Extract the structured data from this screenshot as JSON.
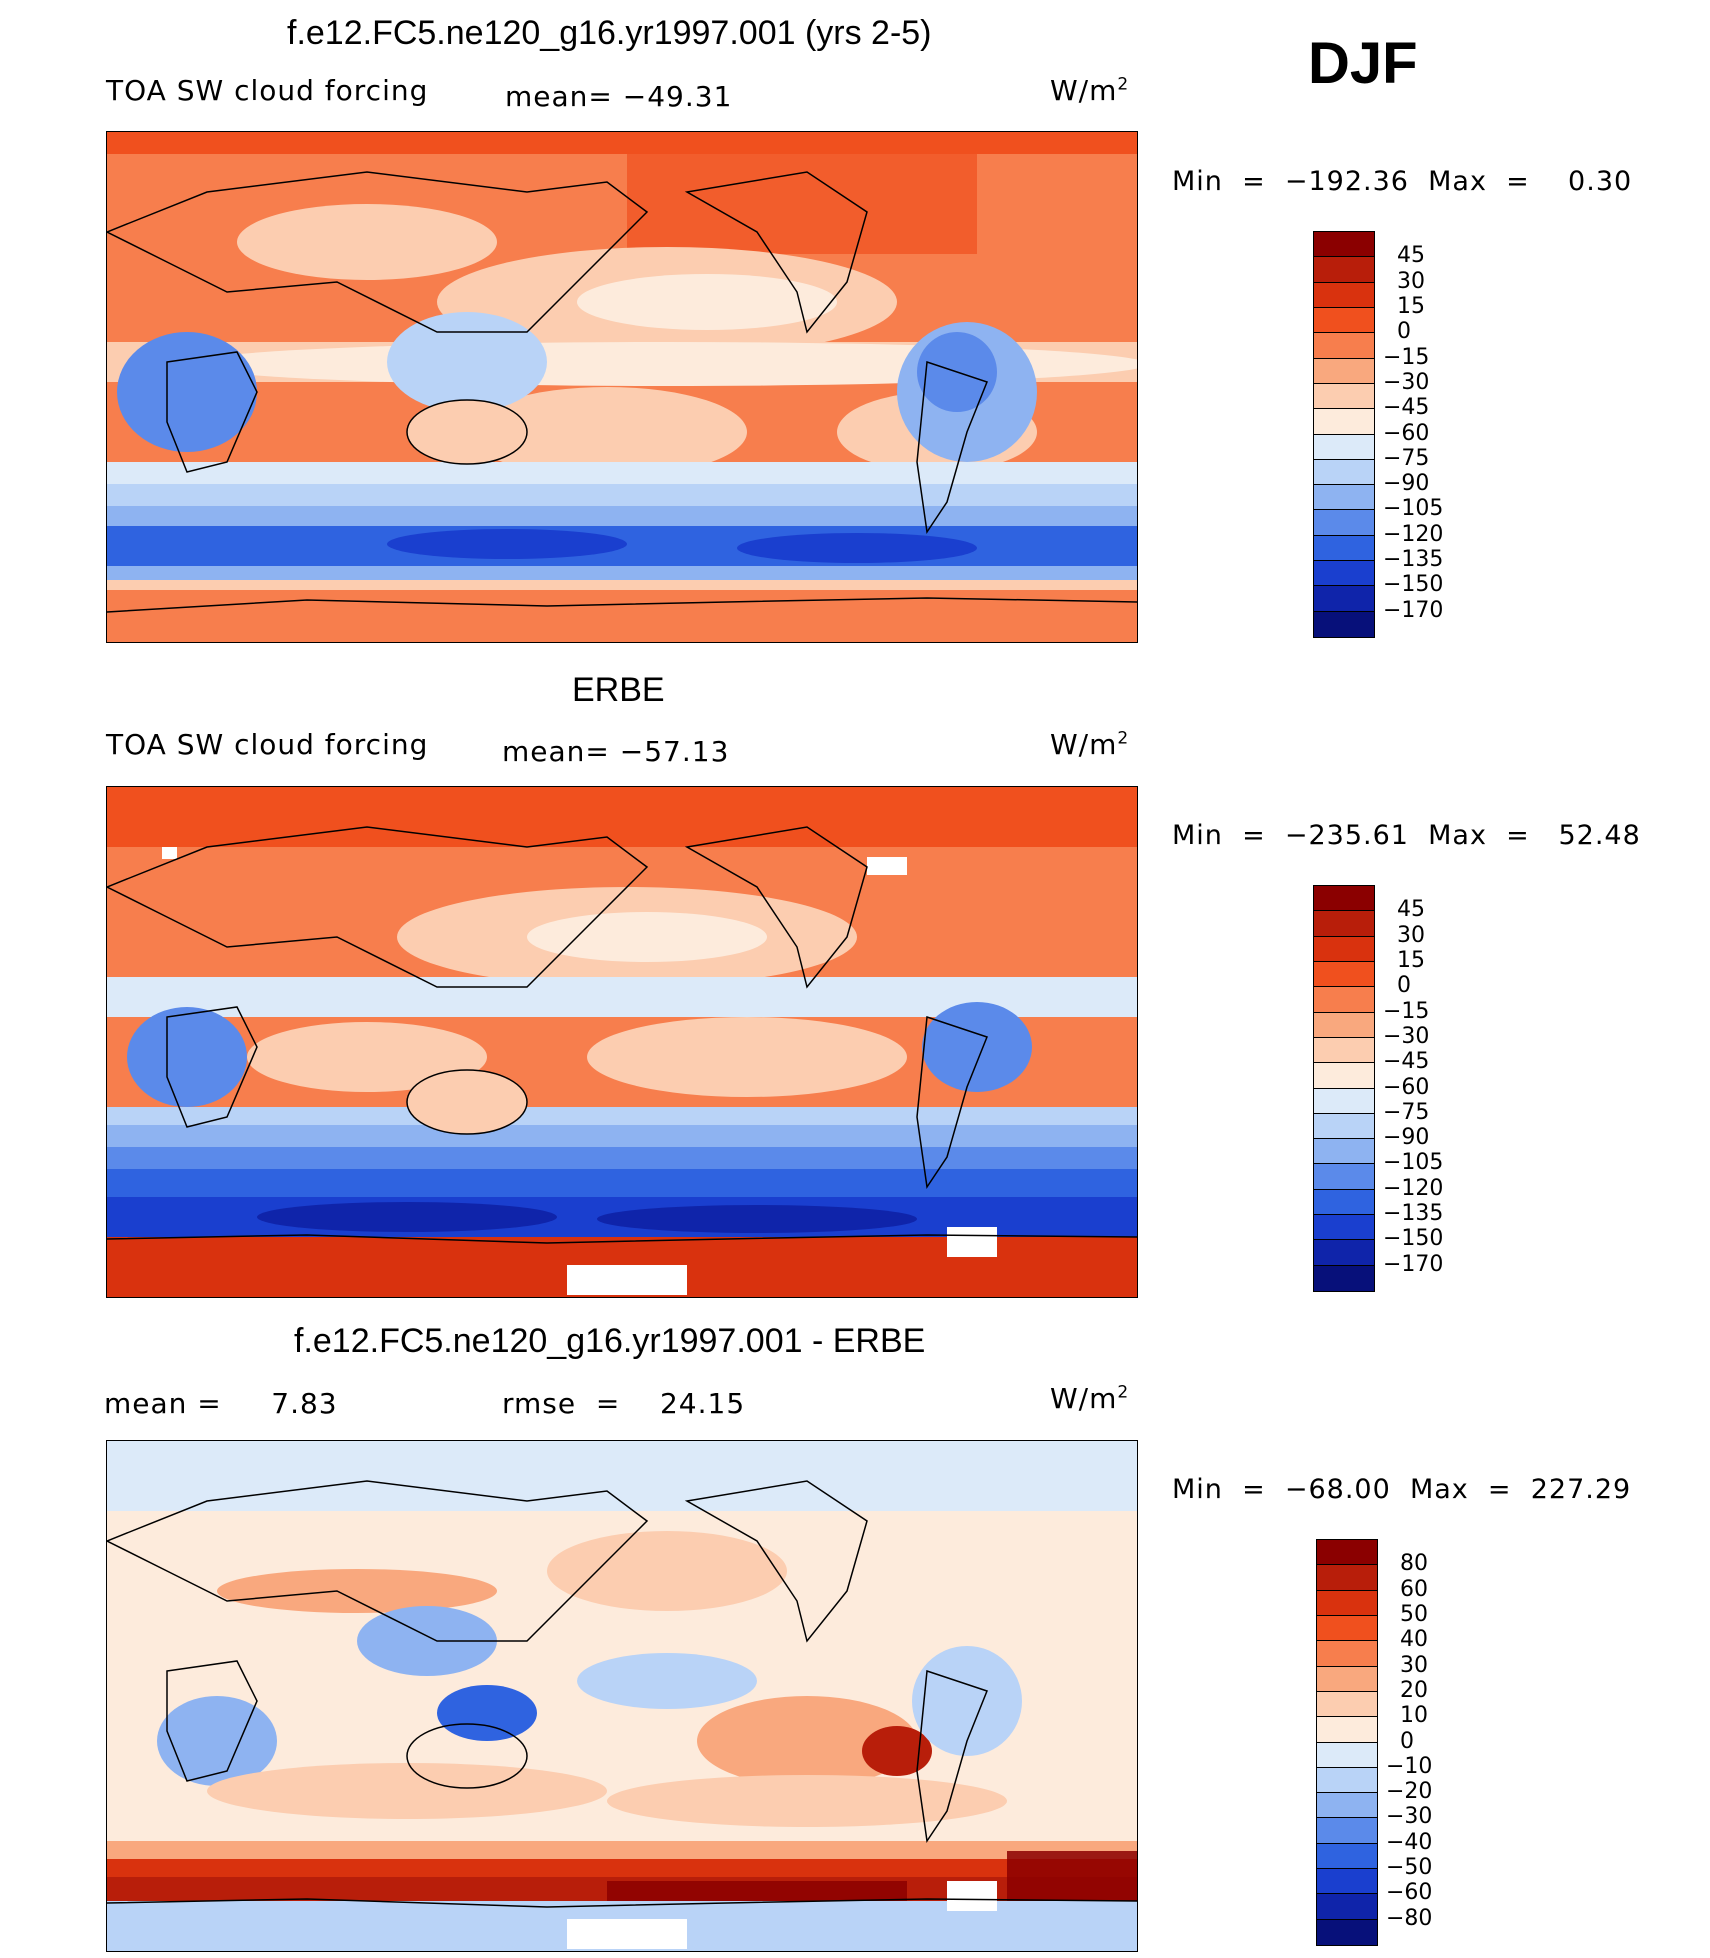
{
  "season": "DJF",
  "panels": [
    {
      "title": "f.e12.FC5.ne120_g16.yr1997.001 (yrs 2-5)",
      "left_label": "TOA SW cloud forcing",
      "center_label": "mean= −49.31",
      "units_base": "W/m",
      "units_exp": "2",
      "minmax": "Min  =  −192.36  Max  =    0.30",
      "levels": [
        "45",
        "30",
        "15",
        "0",
        "−15",
        "−30",
        "−45",
        "−60",
        "−75",
        "−90",
        "−105",
        "−120",
        "−135",
        "−150",
        "−170"
      ],
      "colors": [
        "#8b0000",
        "#b81e0a",
        "#d9320e",
        "#f0501e",
        "#f77e4d",
        "#f9a87e",
        "#fccdb0",
        "#fdebdc",
        "#dceaf9",
        "#b9d3f7",
        "#8eb3f1",
        "#5b8aea",
        "#2f63e0",
        "#1a3fcf",
        "#0f24aa",
        "#07107a"
      ]
    },
    {
      "title": "ERBE",
      "left_label": "TOA SW cloud forcing",
      "center_label": "mean= −57.13",
      "units_base": "W/m",
      "units_exp": "2",
      "minmax": "Min  =  −235.61  Max  =   52.48",
      "levels": [
        "45",
        "30",
        "15",
        "0",
        "−15",
        "−30",
        "−45",
        "−60",
        "−75",
        "−90",
        "−105",
        "−120",
        "−135",
        "−150",
        "−170"
      ],
      "colors": [
        "#8b0000",
        "#b81e0a",
        "#d9320e",
        "#f0501e",
        "#f77e4d",
        "#f9a87e",
        "#fccdb0",
        "#fdebdc",
        "#dceaf9",
        "#b9d3f7",
        "#8eb3f1",
        "#5b8aea",
        "#2f63e0",
        "#1a3fcf",
        "#0f24aa",
        "#07107a"
      ]
    },
    {
      "title": "f.e12.FC5.ne120_g16.yr1997.001 - ERBE",
      "left_label": "mean =     7.83",
      "center_label": "rmse  =    24.15",
      "units_base": "W/m",
      "units_exp": "2",
      "minmax": "Min  =  −68.00  Max  =  227.29",
      "levels": [
        "80",
        "60",
        "50",
        "40",
        "30",
        "20",
        "10",
        "0",
        "−10",
        "−20",
        "−30",
        "−40",
        "−50",
        "−60",
        "−80"
      ],
      "colors": [
        "#8b0000",
        "#b81e0a",
        "#d9320e",
        "#f0501e",
        "#f77e4d",
        "#f9a87e",
        "#fccdb0",
        "#fdebdc",
        "#dceaf9",
        "#b9d3f7",
        "#8eb3f1",
        "#5b8aea",
        "#2f63e0",
        "#1a3fcf",
        "#0f24aa",
        "#07107a"
      ]
    }
  ]
}
